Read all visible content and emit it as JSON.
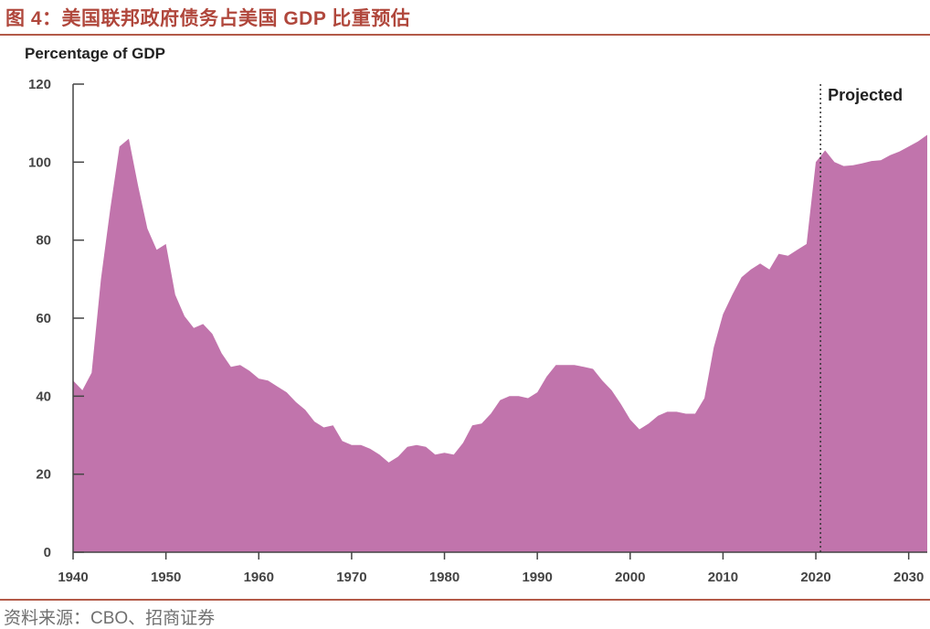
{
  "header": {
    "figure_title": "图 4：美国联邦政府债务占美国 GDP 比重预估"
  },
  "footer": {
    "source": "资料来源：CBO、招商证券"
  },
  "colors": {
    "area_fill": "#c174ac",
    "title_color": "#b0473c",
    "rule_color": "#b35a48",
    "axis_color": "#444444"
  },
  "chart_data": {
    "type": "area",
    "title": "",
    "ylabel": "Percentage of GDP",
    "xlabel": "",
    "ylim": [
      0,
      120
    ],
    "xlim": [
      1940,
      2032
    ],
    "y_ticks": [
      0,
      20,
      40,
      60,
      80,
      100,
      120
    ],
    "x_ticks": [
      1940,
      1950,
      1960,
      1970,
      1980,
      1990,
      2000,
      2010,
      2020,
      2030
    ],
    "grid": false,
    "annotations": [
      {
        "text": "Projected",
        "x": 2020.5
      }
    ],
    "x": [
      1940,
      1941,
      1942,
      1943,
      1944,
      1945,
      1946,
      1947,
      1948,
      1949,
      1950,
      1951,
      1952,
      1953,
      1954,
      1955,
      1956,
      1957,
      1958,
      1959,
      1960,
      1961,
      1962,
      1963,
      1964,
      1965,
      1966,
      1967,
      1968,
      1969,
      1970,
      1971,
      1972,
      1973,
      1974,
      1975,
      1976,
      1977,
      1978,
      1979,
      1980,
      1981,
      1982,
      1983,
      1984,
      1985,
      1986,
      1987,
      1988,
      1989,
      1990,
      1991,
      1992,
      1993,
      1994,
      1995,
      1996,
      1997,
      1998,
      1999,
      2000,
      2001,
      2002,
      2003,
      2004,
      2005,
      2006,
      2007,
      2008,
      2009,
      2010,
      2011,
      2012,
      2013,
      2014,
      2015,
      2016,
      2017,
      2018,
      2019,
      2020,
      2021,
      2022,
      2023,
      2024,
      2025,
      2026,
      2027,
      2028,
      2029,
      2030,
      2031,
      2032
    ],
    "series": [
      {
        "values": [
          44,
          41.5,
          46,
          70,
          88,
          104,
          106,
          94,
          83,
          77.5,
          79,
          66,
          60.5,
          57.5,
          58.5,
          56,
          51,
          47.5,
          48,
          46.5,
          44.5,
          44,
          42.5,
          41,
          38.5,
          36.5,
          33.5,
          32,
          32.5,
          28.5,
          27.5,
          27.5,
          26.5,
          25,
          23,
          24.5,
          27,
          27.5,
          27,
          25,
          25.5,
          25,
          28,
          32.5,
          33,
          35.5,
          39,
          40,
          40,
          39.5,
          41,
          45,
          48,
          48,
          48,
          47.5,
          47,
          44,
          41.5,
          38,
          34,
          31.5,
          33,
          35,
          36,
          36,
          35.5,
          35.5,
          39.5,
          52.5,
          61,
          66,
          70.5,
          72.5,
          74,
          72.5,
          76.5,
          76,
          77.5,
          79,
          100,
          103,
          100,
          99,
          99.2,
          99.7,
          100.3,
          100.5,
          101.8,
          102.7,
          104,
          105.3,
          107
        ]
      }
    ]
  }
}
